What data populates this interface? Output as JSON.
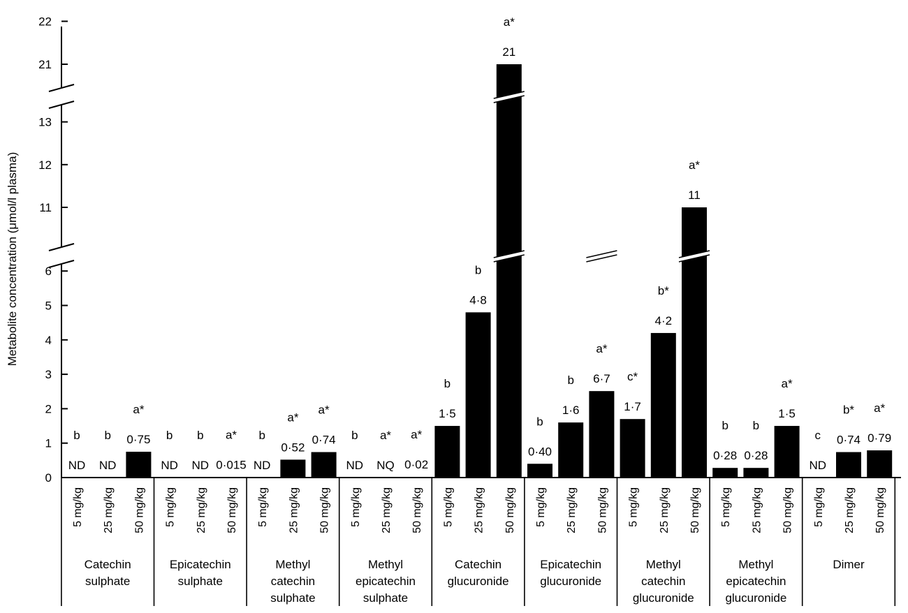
{
  "chart_data": {
    "type": "bar",
    "ylabel": "Metabolite concentration (μmol/l plasma)",
    "y_axis_break": true,
    "y_segments": [
      {
        "range": [
          0,
          6.5
        ],
        "ticks": [
          "0",
          "1",
          "2",
          "3",
          "4",
          "5",
          "6"
        ]
      },
      {
        "range": [
          10.5,
          13.5
        ],
        "ticks": [
          "11",
          "12",
          "13"
        ]
      },
      {
        "range": [
          20.5,
          22
        ],
        "ticks": [
          "21",
          "22"
        ]
      }
    ],
    "bar_color": "#000000",
    "doses": [
      "5 mg/kg",
      "25 mg/kg",
      "50 mg/kg"
    ],
    "groups": [
      {
        "lines": [
          "Catechin",
          "sulphate"
        ],
        "bars": [
          {
            "value": 0,
            "label": "ND",
            "sig": "b"
          },
          {
            "value": 0,
            "label": "ND",
            "sig": "b"
          },
          {
            "value": 0.75,
            "label": "0·75",
            "sig": "a*"
          }
        ]
      },
      {
        "lines": [
          "Epicatechin",
          "sulphate"
        ],
        "bars": [
          {
            "value": 0,
            "label": "ND",
            "sig": "b"
          },
          {
            "value": 0,
            "label": "ND",
            "sig": "b"
          },
          {
            "value": 0.015,
            "label": "0·015",
            "sig": "a*"
          }
        ]
      },
      {
        "lines": [
          "Methyl",
          "catechin",
          "sulphate"
        ],
        "bars": [
          {
            "value": 0,
            "label": "ND",
            "sig": "b"
          },
          {
            "value": 0.52,
            "label": "0·52",
            "sig": "a*"
          },
          {
            "value": 0.74,
            "label": "0·74",
            "sig": "a*"
          }
        ]
      },
      {
        "lines": [
          "Methyl",
          "epicatechin",
          "sulphate"
        ],
        "bars": [
          {
            "value": 0,
            "label": "ND",
            "sig": "b"
          },
          {
            "value": 0,
            "label": "NQ",
            "sig": "a*"
          },
          {
            "value": 0.02,
            "label": "0·02",
            "sig": "a*"
          }
        ]
      },
      {
        "lines": [
          "Catechin",
          "glucuronide"
        ],
        "bars": [
          {
            "value": 1.5,
            "label": "1·5",
            "sig": "b"
          },
          {
            "value": 4.8,
            "label": "4·8",
            "sig": "b"
          },
          {
            "value": 21,
            "label": "21",
            "sig": "a*"
          }
        ]
      },
      {
        "lines": [
          "Epicatechin",
          "glucuronide"
        ],
        "bars": [
          {
            "value": 0.4,
            "label": "0·40",
            "sig": "b"
          },
          {
            "value": 1.6,
            "label": "1·6",
            "sig": "b"
          },
          {
            "value": 6.7,
            "label": "6·7",
            "sig": "a*"
          }
        ]
      },
      {
        "lines": [
          "Methyl",
          "catechin",
          "glucuronide"
        ],
        "bars": [
          {
            "value": 1.7,
            "label": "1·7",
            "sig": "c*"
          },
          {
            "value": 4.2,
            "label": "4·2",
            "sig": "b*"
          },
          {
            "value": 11,
            "label": "11",
            "sig": "a*"
          }
        ]
      },
      {
        "lines": [
          "Methyl",
          "epicatechin",
          "glucuronide"
        ],
        "bars": [
          {
            "value": 0.28,
            "label": "0·28",
            "sig": "b"
          },
          {
            "value": 0.28,
            "label": "0·28",
            "sig": "b"
          },
          {
            "value": 1.5,
            "label": "1·5",
            "sig": "a*"
          }
        ]
      },
      {
        "lines": [
          "Dimer"
        ],
        "bars": [
          {
            "value": 0,
            "label": "ND",
            "sig": "c"
          },
          {
            "value": 0.74,
            "label": "0·74",
            "sig": "b*"
          },
          {
            "value": 0.79,
            "label": "0·79",
            "sig": "a*"
          }
        ]
      }
    ]
  }
}
